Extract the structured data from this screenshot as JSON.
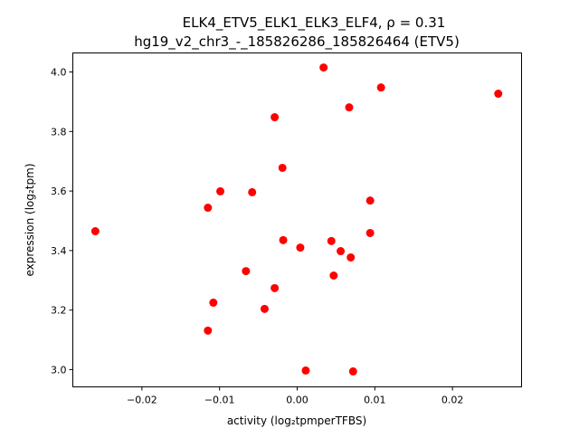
{
  "chart_data": {
    "type": "scatter",
    "title_line1": "ELK4_ETV5_ELK1_ELK3_ELF4, ρ = 0.31",
    "title_line2": "hg19_v2_chr3_-_185826286_185826464 (ETV5)",
    "xlabel": "activity (log₂tpmperTFBS)",
    "ylabel": "expression (log₂tpm)",
    "xlim": [
      -0.0289,
      0.0289
    ],
    "ylim": [
      2.942,
      4.064
    ],
    "xticks": [
      -0.02,
      -0.01,
      0.0,
      0.01,
      0.02
    ],
    "xtick_labels": [
      "−0.02",
      "−0.01",
      "0.00",
      "0.01",
      "0.02"
    ],
    "yticks": [
      3.0,
      3.2,
      3.4,
      3.6,
      3.8,
      4.0
    ],
    "ytick_labels": [
      "3.0",
      "3.2",
      "3.4",
      "3.6",
      "3.8",
      "4.0"
    ],
    "color": "#ff0000",
    "points": [
      [
        0.0034,
        4.015
      ],
      [
        0.0108,
        3.948
      ],
      [
        0.0259,
        3.927
      ],
      [
        0.0067,
        3.881
      ],
      [
        -0.0029,
        3.848
      ],
      [
        -0.0019,
        3.678
      ],
      [
        -0.0099,
        3.599
      ],
      [
        -0.0058,
        3.596
      ],
      [
        -0.0115,
        3.544
      ],
      [
        0.0094,
        3.568
      ],
      [
        -0.026,
        3.465
      ],
      [
        0.0094,
        3.459
      ],
      [
        -0.0018,
        3.435
      ],
      [
        0.0044,
        3.432
      ],
      [
        0.0004,
        3.41
      ],
      [
        0.0056,
        3.398
      ],
      [
        0.0069,
        3.377
      ],
      [
        -0.0066,
        3.331
      ],
      [
        0.0047,
        3.316
      ],
      [
        -0.0029,
        3.274
      ],
      [
        -0.0108,
        3.225
      ],
      [
        -0.0042,
        3.204
      ],
      [
        -0.0115,
        3.131
      ],
      [
        0.0011,
        2.997
      ],
      [
        0.0072,
        2.994
      ]
    ]
  }
}
